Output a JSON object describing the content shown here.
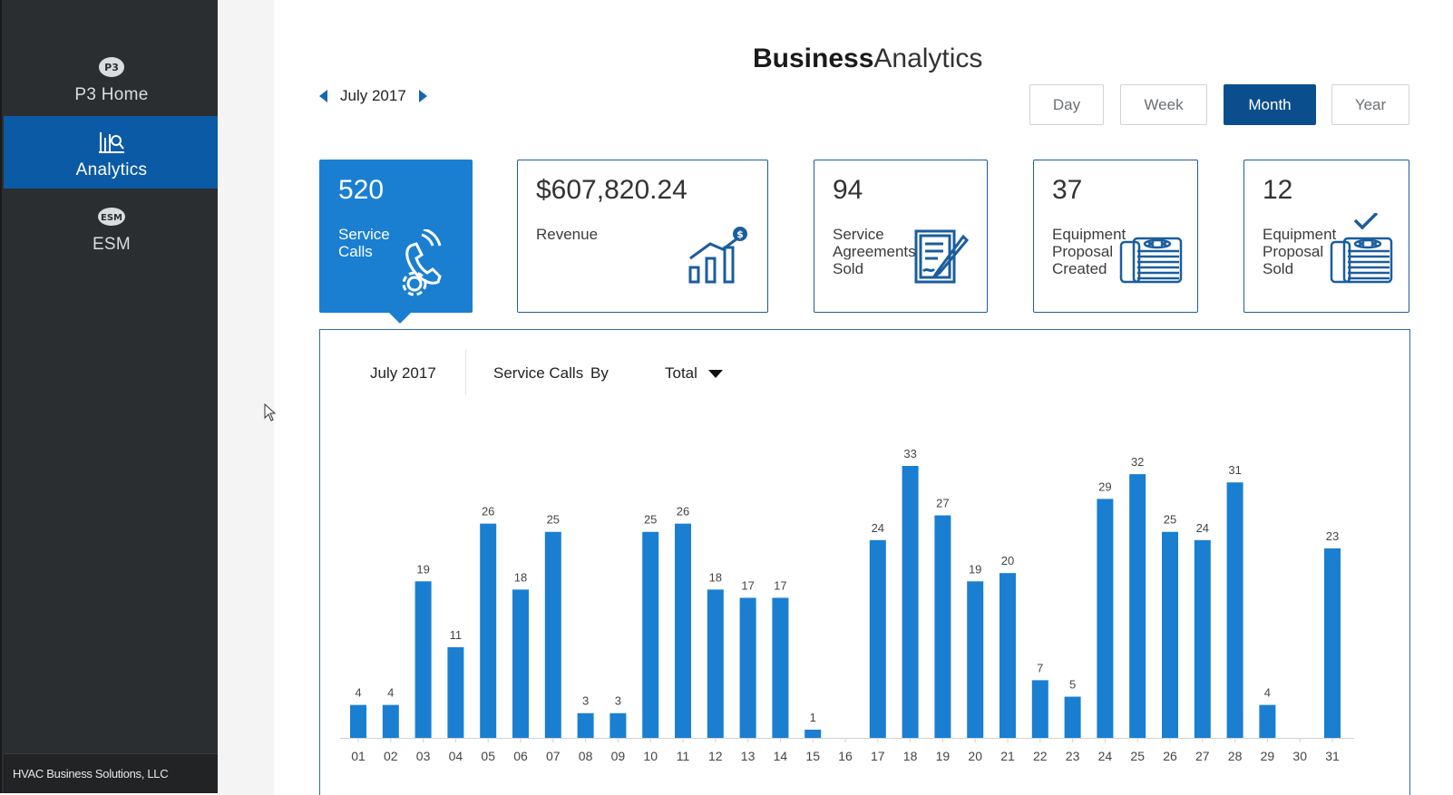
{
  "sidebar": {
    "items": [
      {
        "label": "P3 Home",
        "icon": "p3-logo-icon"
      },
      {
        "label": "Analytics",
        "icon": "analytics-icon"
      },
      {
        "label": "ESM",
        "icon": "esm-logo-icon"
      }
    ],
    "footer": "HVAC Business Solutions, LLC"
  },
  "header": {
    "title_bold": "Business",
    "title_light": "Analytics",
    "period": "July 2017"
  },
  "ranges": [
    "Day",
    "Week",
    "Month",
    "Year"
  ],
  "active_range": "Month",
  "cards": [
    {
      "value": "520",
      "label": "Service\nCalls",
      "icon": "phone-gear-icon"
    },
    {
      "value": "$607,820.24",
      "label": "Revenue",
      "icon": "revenue-growth-icon"
    },
    {
      "value": "94",
      "label": "Service\nAgreements\nSold",
      "icon": "contract-pen-icon"
    },
    {
      "value": "37",
      "label": "Equipment\nProposal\nCreated",
      "icon": "equipment-unit-icon"
    },
    {
      "value": "12",
      "label": "Equipment\nProposal\nSold",
      "icon": "equipment-sold-icon"
    }
  ],
  "chart_header": {
    "period": "July 2017",
    "metric": "Service Calls",
    "by": "By",
    "group_by": "Total"
  },
  "colors": {
    "accent": "#1a7fd1",
    "sidebar": "#2b2e31",
    "sidebar_active": "#0b5aa6",
    "bar": "#1a7fd1"
  },
  "chart_data": {
    "type": "bar",
    "categories": [
      "01",
      "02",
      "03",
      "04",
      "05",
      "06",
      "07",
      "08",
      "09",
      "10",
      "11",
      "12",
      "13",
      "14",
      "15",
      "16",
      "17",
      "18",
      "19",
      "20",
      "21",
      "22",
      "23",
      "24",
      "25",
      "26",
      "27",
      "28",
      "29",
      "30",
      "31"
    ],
    "values": [
      4,
      4,
      19,
      11,
      26,
      18,
      25,
      3,
      3,
      25,
      26,
      18,
      17,
      17,
      1,
      0,
      24,
      33,
      27,
      19,
      20,
      7,
      5,
      29,
      32,
      25,
      24,
      31,
      4,
      0,
      23
    ],
    "value_labels": [
      "4",
      "4",
      "19",
      "11",
      "26",
      "18",
      "25",
      "3",
      "3",
      "25",
      "26",
      "18",
      "17",
      "17",
      "1",
      "",
      "24",
      "33",
      "27",
      "19",
      "20",
      "7",
      "5",
      "29",
      "32",
      "25",
      "24",
      "31",
      "4",
      "",
      "23"
    ],
    "title": "",
    "xlabel": "",
    "ylabel": "",
    "grid": false,
    "ylim": [
      0,
      33
    ]
  }
}
